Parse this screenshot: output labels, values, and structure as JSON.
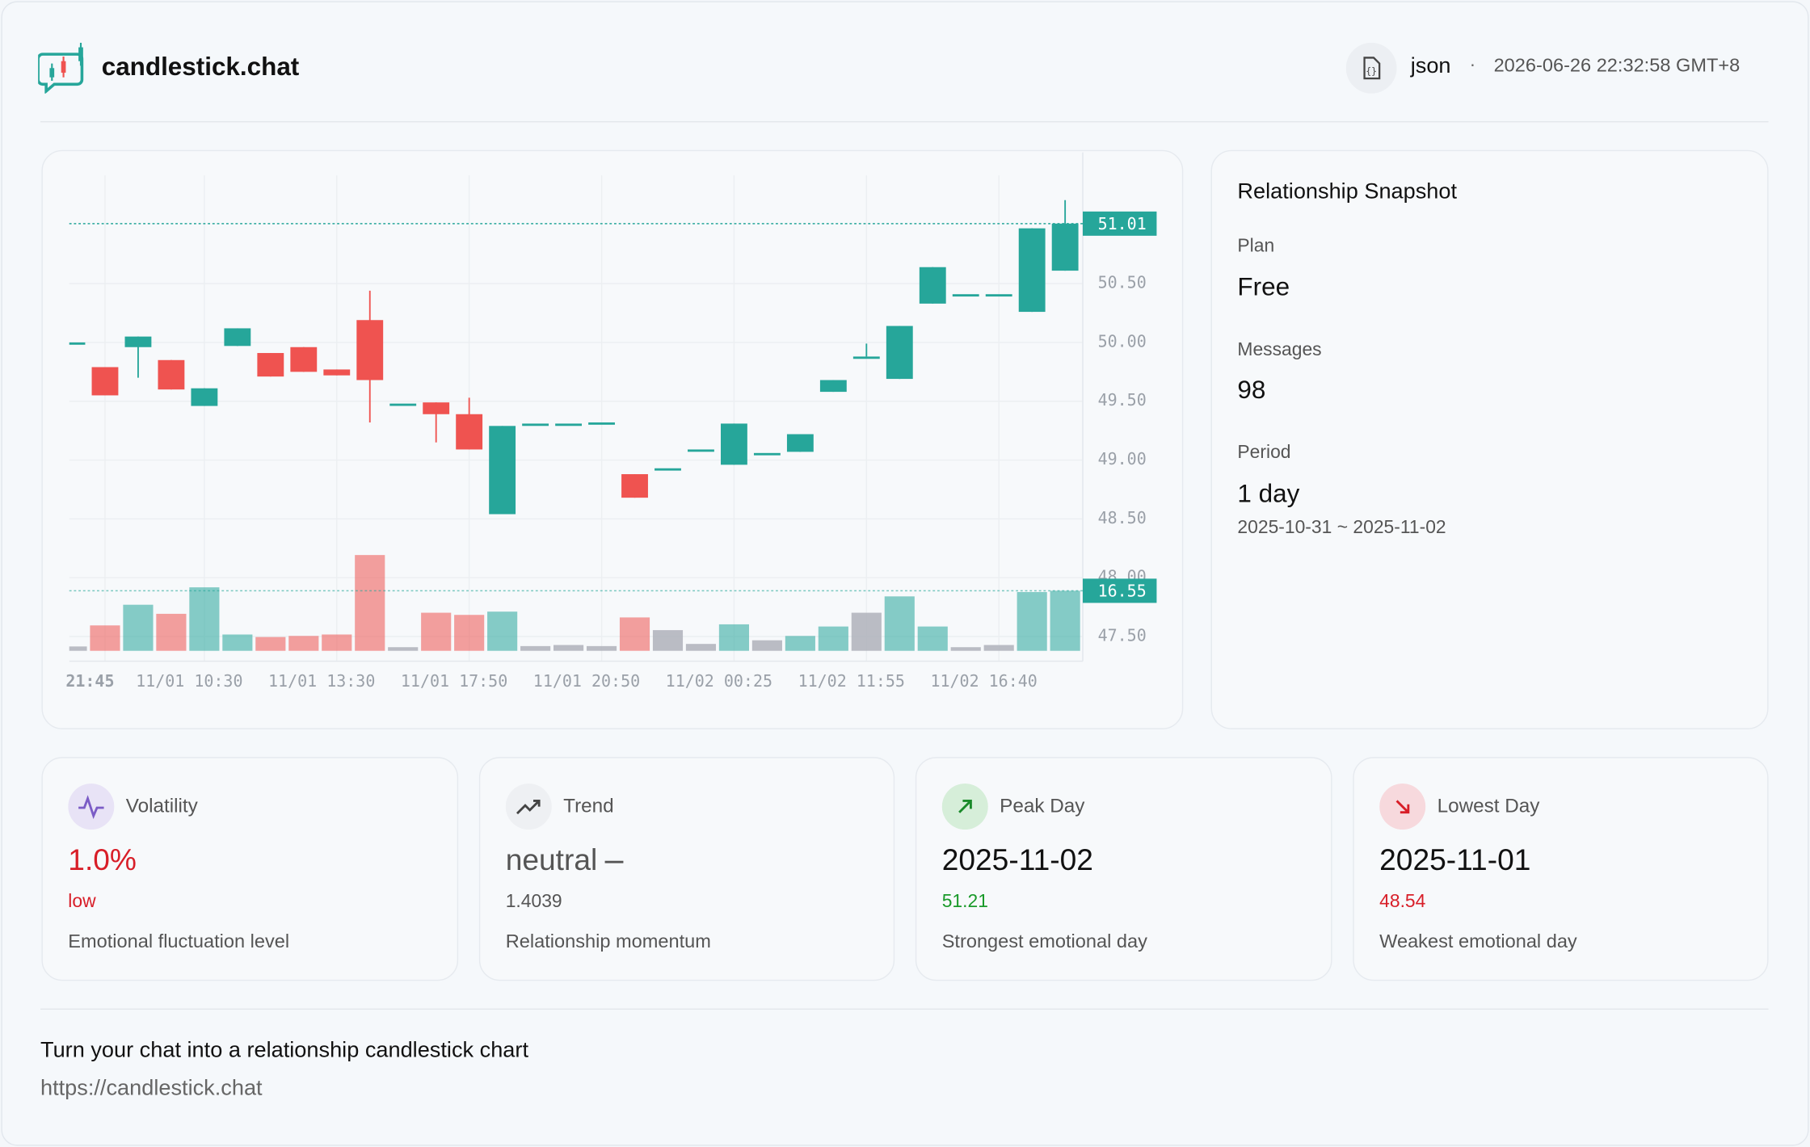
{
  "header": {
    "brand": "candlestick.chat",
    "file_type": "json",
    "separator": "·",
    "timestamp": "2026-06-26 22:32:58 GMT+8"
  },
  "chart_data": {
    "type": "candlestick",
    "categories": [
      null,
      "21:45",
      null,
      null,
      "11/01 10:30",
      null,
      null,
      null,
      "11/01 13:30",
      null,
      null,
      null,
      "11/01 17:50",
      null,
      null,
      null,
      "11/01 20:50",
      null,
      null,
      null,
      "11/02 00:25",
      null,
      null,
      null,
      "11/02 11:55",
      null,
      null,
      null,
      "11/02 16:40",
      null,
      null
    ],
    "open": [
      50.0,
      49.79,
      49.96,
      49.85,
      49.46,
      49.97,
      49.91,
      49.96,
      49.77,
      50.19,
      49.48,
      49.49,
      49.39,
      48.54,
      49.31,
      49.31,
      49.32,
      48.88,
      48.93,
      49.09,
      48.96,
      49.06,
      49.07,
      49.58,
      49.88,
      49.69,
      50.33,
      50.41,
      50.41,
      50.26,
      50.61
    ],
    "high": [
      50.0,
      49.79,
      50.05,
      49.85,
      49.61,
      50.12,
      49.91,
      49.96,
      49.77,
      50.44,
      49.48,
      49.49,
      49.53,
      49.29,
      49.31,
      49.31,
      49.32,
      48.88,
      48.93,
      49.09,
      49.31,
      49.06,
      49.22,
      49.68,
      49.99,
      50.14,
      50.64,
      50.41,
      50.41,
      50.97,
      51.21
    ],
    "low": [
      50.0,
      49.55,
      49.7,
      49.6,
      49.46,
      49.97,
      49.71,
      49.75,
      49.72,
      49.32,
      49.48,
      49.15,
      49.09,
      48.54,
      49.31,
      49.31,
      49.32,
      48.68,
      48.93,
      49.09,
      48.96,
      49.06,
      49.07,
      49.58,
      49.88,
      49.69,
      50.33,
      50.41,
      50.41,
      50.26,
      50.61
    ],
    "close": [
      50.0,
      49.55,
      50.05,
      49.6,
      49.61,
      50.12,
      49.71,
      49.75,
      49.72,
      49.68,
      49.48,
      49.39,
      49.09,
      49.29,
      49.31,
      49.31,
      49.32,
      48.68,
      48.93,
      49.09,
      49.31,
      49.06,
      49.22,
      49.68,
      49.88,
      50.14,
      50.64,
      50.41,
      50.41,
      50.97,
      51.01
    ],
    "volume": [
      1.2,
      7.0,
      12.7,
      10.2,
      17.5,
      4.5,
      3.8,
      4.1,
      4.5,
      26.4,
      1.0,
      10.5,
      9.9,
      10.8,
      1.3,
      1.6,
      1.3,
      9.2,
      5.7,
      1.9,
      7.3,
      2.9,
      4.1,
      6.7,
      10.5,
      15.0,
      6.7,
      1.0,
      1.6,
      16.2,
      16.55
    ],
    "up_color": "#26a69a",
    "down_color": "#ef5350",
    "flat_volume_color": "#b2b5be",
    "ylim": [
      47.29,
      51.42
    ],
    "yticks": [
      {
        "value": 47.5,
        "label": "47.50"
      },
      {
        "value": 48,
        "label": "48.00"
      },
      {
        "value": 48.5,
        "label": "48.50"
      },
      {
        "value": 49,
        "label": "49.00"
      },
      {
        "value": 49.5,
        "label": "49.50"
      },
      {
        "value": 50,
        "label": "50.00"
      },
      {
        "value": 50.5,
        "label": "50.50"
      }
    ],
    "grid": true
  },
  "snapshot": {
    "title": "Relationship Snapshot",
    "plan_label": "Plan",
    "plan": "Free",
    "messages_label": "Messages",
    "messages": "98",
    "period_label": "Period",
    "period": "1 day",
    "range": "2025-10-31 ~ 2025-11-02"
  },
  "cards": [
    {
      "label": "Volatility",
      "value": "1.0%",
      "sub": "low",
      "desc": "Emotional fluctuation level"
    },
    {
      "label": "Trend",
      "value": "neutral",
      "sub": "1.4039",
      "desc": "Relationship momentum"
    },
    {
      "label": "Peak Day",
      "value": "2025-11-02",
      "sub": "51.21",
      "desc": "Strongest emotional day"
    },
    {
      "label": "Lowest Day",
      "value": "2025-11-01",
      "sub": "48.54",
      "desc": "Weakest emotional day"
    }
  ],
  "footer": {
    "tagline": "Turn your chat into a relationship candlestick chart",
    "url": "https://candlestick.chat"
  }
}
